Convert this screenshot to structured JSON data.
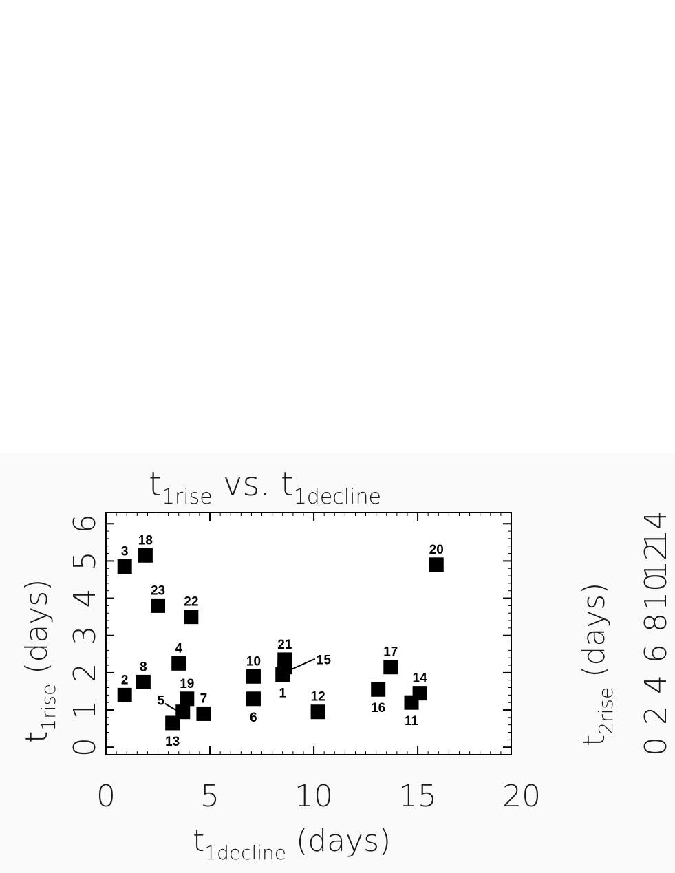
{
  "chart_data": {
    "type": "scatter",
    "title": {
      "base": "t",
      "sub_a": "1rise",
      "mid": " vs. ",
      "base2": "t",
      "sub_b": "1decline"
    },
    "xlabel": {
      "base": "t",
      "sub": "1decline",
      "rest": " (days)"
    },
    "ylabel": {
      "base": "t",
      "sub": "1rise",
      "rest": " (days)"
    },
    "xlim": [
      0,
      19.5
    ],
    "ylim": [
      -0.2,
      6.3
    ],
    "xticks": [
      0,
      5,
      10,
      15,
      20
    ],
    "yticks": [
      0,
      1,
      2,
      3,
      4,
      5,
      6
    ],
    "points": [
      {
        "id": "1",
        "x": 8.5,
        "y": 1.95,
        "label_pos": "below"
      },
      {
        "id": "2",
        "x": 0.9,
        "y": 1.4,
        "label_pos": "above"
      },
      {
        "id": "3",
        "x": 0.9,
        "y": 4.85,
        "label_pos": "above"
      },
      {
        "id": "4",
        "x": 3.5,
        "y": 2.25,
        "label_pos": "above"
      },
      {
        "id": "5",
        "x": 3.7,
        "y": 0.95,
        "label_pos": "leader-left"
      },
      {
        "id": "6",
        "x": 7.1,
        "y": 1.3,
        "label_pos": "below"
      },
      {
        "id": "7",
        "x": 4.7,
        "y": 0.9,
        "label_pos": "above"
      },
      {
        "id": "8",
        "x": 1.8,
        "y": 1.75,
        "label_pos": "above"
      },
      {
        "id": "10",
        "x": 7.1,
        "y": 1.9,
        "label_pos": "above"
      },
      {
        "id": "11",
        "x": 14.7,
        "y": 1.2,
        "label_pos": "below"
      },
      {
        "id": "12",
        "x": 10.2,
        "y": 0.95,
        "label_pos": "above"
      },
      {
        "id": "13",
        "x": 3.2,
        "y": 0.65,
        "label_pos": "below"
      },
      {
        "id": "14",
        "x": 15.1,
        "y": 1.45,
        "label_pos": "above"
      },
      {
        "id": "15",
        "x": 8.6,
        "y": 2.15,
        "label_pos": "leader-right"
      },
      {
        "id": "16",
        "x": 13.1,
        "y": 1.55,
        "label_pos": "below"
      },
      {
        "id": "17",
        "x": 13.7,
        "y": 2.15,
        "label_pos": "above"
      },
      {
        "id": "18",
        "x": 1.9,
        "y": 5.15,
        "label_pos": "above"
      },
      {
        "id": "19",
        "x": 3.9,
        "y": 1.3,
        "label_pos": "above"
      },
      {
        "id": "20",
        "x": 15.9,
        "y": 4.9,
        "label_pos": "above"
      },
      {
        "id": "21",
        "x": 8.6,
        "y": 2.35,
        "label_pos": "above"
      },
      {
        "id": "22",
        "x": 4.1,
        "y": 3.5,
        "label_pos": "above"
      },
      {
        "id": "23",
        "x": 2.5,
        "y": 3.8,
        "label_pos": "above"
      }
    ]
  },
  "right_panel_partial": {
    "ylabel": {
      "base": "t",
      "sub": "2rise",
      "rest": " (days)"
    },
    "yticks": [
      "14",
      "12",
      "10",
      "8",
      "6",
      "4",
      "2",
      "0"
    ]
  }
}
